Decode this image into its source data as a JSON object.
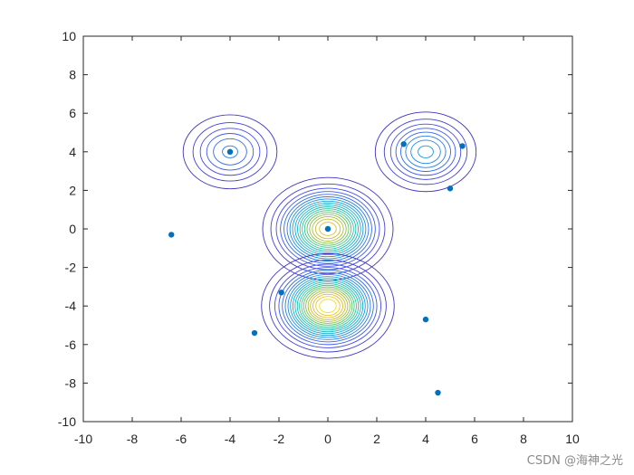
{
  "chart_data": {
    "type": "scatter",
    "title": "",
    "xlabel": "",
    "ylabel": "",
    "xlim": [
      -10,
      10
    ],
    "ylim": [
      -10,
      10
    ],
    "xticks": [
      -10,
      -8,
      -6,
      -4,
      -2,
      0,
      2,
      4,
      6,
      8,
      10
    ],
    "yticks": [
      -10,
      -8,
      -6,
      -4,
      -2,
      0,
      2,
      4,
      6,
      8,
      10
    ],
    "grid": false,
    "legend": "none",
    "point_color": "#0072BD",
    "points": [
      {
        "x": -4.0,
        "y": 4.0
      },
      {
        "x": 3.1,
        "y": 4.4
      },
      {
        "x": 5.5,
        "y": 4.3
      },
      {
        "x": 5.0,
        "y": 2.1
      },
      {
        "x": 0.0,
        "y": 0.0
      },
      {
        "x": -6.4,
        "y": -0.3
      },
      {
        "x": -1.9,
        "y": -3.3
      },
      {
        "x": 4.0,
        "y": -4.7
      },
      {
        "x": -3.0,
        "y": -5.4
      },
      {
        "x": 4.5,
        "y": -8.5
      }
    ],
    "contours": {
      "type": "contour",
      "colormap": "parula",
      "levels": 20,
      "components": [
        {
          "center": [
            -4,
            4
          ],
          "sigma": 1,
          "peak": 6
        },
        {
          "center": [
            4,
            4
          ],
          "sigma": 1,
          "peak": 8
        },
        {
          "center": [
            0,
            0
          ],
          "sigma": 1.1,
          "peak": 18
        },
        {
          "center": [
            0,
            -4
          ],
          "sigma": 1.1,
          "peak": 20
        }
      ]
    }
  },
  "watermark": "CSDN @海神之光"
}
